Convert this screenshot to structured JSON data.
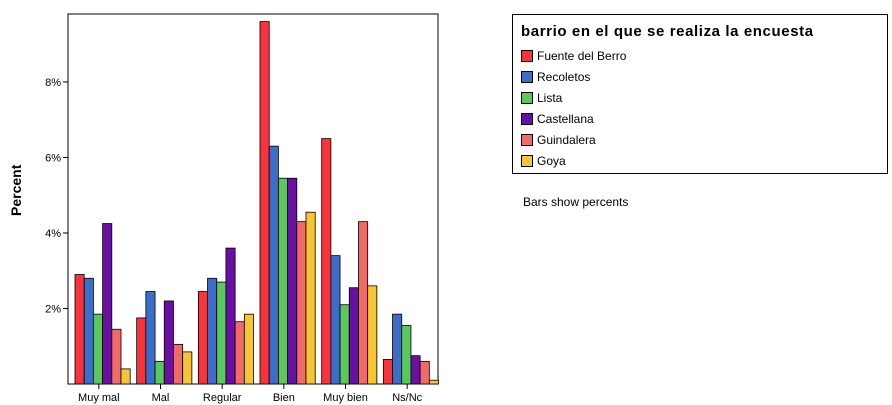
{
  "chart_data": {
    "type": "bar",
    "ylabel": "Percent",
    "ylim": [
      0,
      9.8
    ],
    "yticks": [
      "2%",
      "4%",
      "6%",
      "8%"
    ],
    "ytick_values": [
      2,
      4,
      6,
      8
    ],
    "categories": [
      "Muy mal",
      "Mal",
      "Regular",
      "Bien",
      "Muy bien",
      "Ns/Nc"
    ],
    "legend_title": "barrio en el que se realiza la encuesta",
    "legend_position": "top-right",
    "note": "Bars show percents",
    "grid": false,
    "series": [
      {
        "name": "Fuente del Berro",
        "color": "#f8333b",
        "values": [
          2.9,
          1.75,
          2.45,
          9.6,
          6.5,
          0.65
        ]
      },
      {
        "name": "Recoletos",
        "color": "#3b6dc9",
        "values": [
          2.8,
          2.45,
          2.8,
          6.3,
          3.4,
          1.85
        ]
      },
      {
        "name": "Lista",
        "color": "#5bc85d",
        "values": [
          1.85,
          0.6,
          2.7,
          5.45,
          2.1,
          1.55
        ]
      },
      {
        "name": "Castellana",
        "color": "#6a0fa3",
        "values": [
          4.25,
          2.2,
          3.6,
          5.45,
          2.55,
          0.75
        ]
      },
      {
        "name": "Guindalera",
        "color": "#f06a6a",
        "values": [
          1.45,
          1.05,
          1.65,
          4.3,
          4.3,
          0.6
        ]
      },
      {
        "name": "Goya",
        "color": "#f7c534",
        "values": [
          0.4,
          0.85,
          1.85,
          4.55,
          2.6,
          0.1
        ]
      }
    ]
  }
}
